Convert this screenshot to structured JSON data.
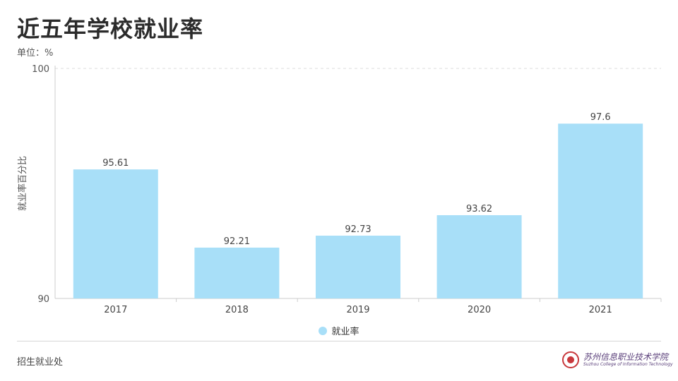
{
  "header": {
    "title": "近五年学校就业率",
    "unit": "单位：%"
  },
  "footer": {
    "department": "招生就业处",
    "logo_name_cn": "苏州信息职业技术学院",
    "logo_name_en": "Suzhou College of Information Technology"
  },
  "colors": {
    "bar": "#a8dff8",
    "axis": "#cccccc",
    "grid": "#dddddd"
  },
  "chart_data": {
    "type": "bar",
    "title": "近五年学校就业率",
    "categories": [
      "2017",
      "2018",
      "2019",
      "2020",
      "2021"
    ],
    "series": [
      {
        "name": "就业率",
        "values": [
          95.61,
          92.21,
          92.73,
          93.62,
          97.6
        ]
      }
    ],
    "ylabel": "就业率百分比",
    "xlabel": "",
    "ylim": [
      90,
      100
    ],
    "yticks": [
      90,
      100
    ],
    "data_labels": [
      "95.61",
      "92.21",
      "92.73",
      "93.62",
      "97.6"
    ],
    "grid": true,
    "legend": "bottom-center"
  }
}
